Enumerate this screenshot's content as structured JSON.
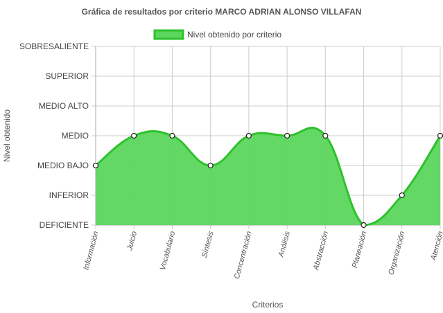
{
  "chart_data": {
    "type": "area",
    "title": "Gráfica de resultados por criterio MARCO ADRIAN ALONSO VILLAFAN",
    "xlabel": "Criterios",
    "ylabel": "Nivel obtenido",
    "legend_position": "top",
    "grid": true,
    "y_levels": [
      "DEFICIENTE",
      "INFERIOR",
      "MEDIO BAJO",
      "MEDIO",
      "MEDIO ALTO",
      "SUPERIOR",
      "SOBRESALIENTE"
    ],
    "ylim": [
      0,
      6
    ],
    "categories": [
      "Información",
      "Juicio",
      "Vocabulario",
      "Síntesis",
      "Concentración",
      "Análisis",
      "Abstracción",
      "Planeación",
      "Organización",
      "Atención"
    ],
    "series": [
      {
        "name": "Nivel obtenido por criterio",
        "values": [
          2,
          3,
          3,
          2,
          3,
          3,
          3,
          0,
          1,
          3
        ],
        "fill_color": "#5cd65c",
        "line_color": "#2cc22c"
      }
    ]
  }
}
